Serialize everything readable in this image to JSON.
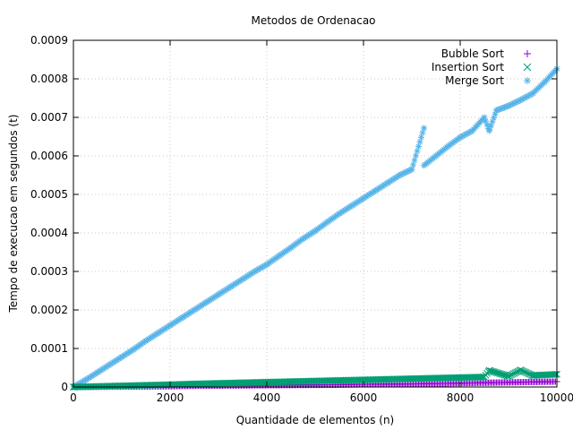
{
  "chart_data": {
    "type": "scatter",
    "title": "Metodos de Ordenacao",
    "xlabel": "Quantidade de elementos (n)",
    "ylabel": "Tempo de execucao em segundos (t)",
    "xlim": [
      0,
      10000
    ],
    "ylim": [
      0,
      0.0009
    ],
    "x_ticks": [
      "0",
      "2000",
      "4000",
      "6000",
      "8000",
      "10000"
    ],
    "y_ticks": [
      "0",
      "0.0001",
      "0.0002",
      "0.0003",
      "0.0004",
      "0.0005",
      "0.0006",
      "0.0007",
      "0.0008",
      "0.0009"
    ],
    "grid": true,
    "legend_position": "top-right",
    "series": [
      {
        "name": "Bubble Sort",
        "marker": "plus",
        "color": "#9400d3",
        "x": [
          0,
          500,
          1000,
          1500,
          2000,
          2500,
          3000,
          3500,
          4000,
          4500,
          5000,
          5500,
          6000,
          6500,
          7000,
          7500,
          8000,
          8500,
          9000,
          9500,
          10000
        ],
        "y": [
          0,
          5e-07,
          1e-06,
          1.5e-06,
          2e-06,
          3e-06,
          3.5e-06,
          4e-06,
          4.5e-06,
          5e-06,
          5.5e-06,
          6e-06,
          7e-06,
          7.5e-06,
          8e-06,
          9e-06,
          1e-05,
          1.1e-05,
          1.2e-05,
          1.3e-05,
          1.4e-05
        ]
      },
      {
        "name": "Insertion Sort",
        "marker": "cross",
        "color": "#009e73",
        "x": [
          0,
          500,
          1000,
          1500,
          2000,
          2500,
          3000,
          3500,
          4000,
          4500,
          5000,
          5500,
          6000,
          6500,
          7000,
          7500,
          8000,
          8500,
          8600,
          9000,
          9250,
          9500,
          10000
        ],
        "y": [
          0,
          1.5e-06,
          3e-06,
          4.5e-06,
          6e-06,
          8e-06,
          9.5e-06,
          1.1e-05,
          1.25e-05,
          1.4e-05,
          1.55e-05,
          1.7e-05,
          1.85e-05,
          2e-05,
          2.15e-05,
          2.3e-05,
          2.45e-05,
          2.6e-05,
          4.3e-05,
          2.8e-05,
          4.4e-05,
          3e-05,
          3.3e-05
        ]
      },
      {
        "name": "Merge Sort",
        "marker": "star",
        "color": "#56b4e9",
        "x": [
          0,
          250,
          500,
          750,
          1000,
          1250,
          1500,
          1750,
          2000,
          2250,
          2500,
          2750,
          3000,
          3250,
          3500,
          3750,
          4000,
          4250,
          4500,
          4750,
          5000,
          5250,
          5500,
          5750,
          6000,
          6250,
          6500,
          6750,
          7000,
          7250,
          7250,
          7500,
          7750,
          8000,
          8250,
          8500,
          8600,
          8750,
          9000,
          9250,
          9500,
          9750,
          10000
        ],
        "y": [
          0,
          1.8e-05,
          3.8e-05,
          5.8e-05,
          7.8e-05,
          9.8e-05,
          0.00012,
          0.00014,
          0.00016,
          0.00018,
          0.0002,
          0.00022,
          0.00024,
          0.00026,
          0.00028,
          0.0003,
          0.000318,
          0.00034,
          0.000362,
          0.000385,
          0.000405,
          0.000428,
          0.00045,
          0.00047,
          0.00049,
          0.00051,
          0.00053,
          0.00055,
          0.000565,
          0.000672,
          0.000575,
          0.0006,
          0.000625,
          0.000648,
          0.000665,
          0.0007,
          0.000665,
          0.000718,
          0.00073,
          0.000745,
          0.000762,
          0.000792,
          0.000826
        ]
      }
    ]
  }
}
